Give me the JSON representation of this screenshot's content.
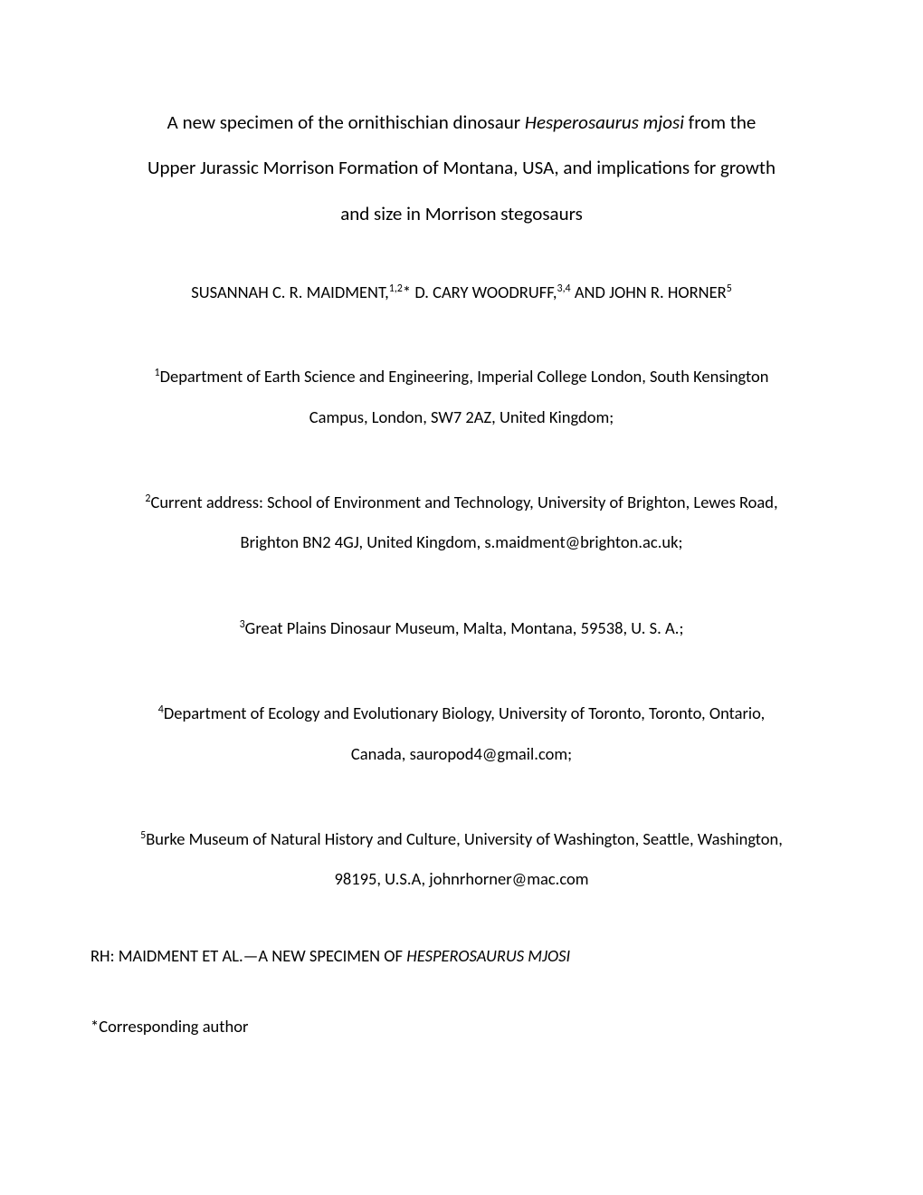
{
  "title": {
    "line1_prefix": "A new specimen of the ornithischian dinosaur ",
    "line1_italic": "Hesperosaurus mjosi",
    "line1_suffix": " from the",
    "line2": "Upper Jurassic Morrison Formation of Montana, USA, and implications for growth",
    "line3": "and size in Morrison stegosaurs"
  },
  "authors": {
    "author1_name": "SUSANNAH C. R. MAIDMENT,",
    "author1_sup": "1,2",
    "author1_suffix": "* ",
    "author2_name": "D. CARY WOODRUFF,",
    "author2_sup": "3,4",
    "author2_suffix": " AND ",
    "author3_name": "JOHN R. HORNER",
    "author3_sup": "5"
  },
  "affiliations": {
    "aff1_sup": "1",
    "aff1_line1": "Department of Earth Science and Engineering, Imperial College London, South Kensington",
    "aff1_line2": "Campus, London, SW7 2AZ, United Kingdom;",
    "aff2_sup": "2",
    "aff2_line1": "Current address: School of Environment and Technology, University of Brighton, Lewes Road,",
    "aff2_line2": "Brighton BN2 4GJ, United Kingdom, s.maidment@brighton.ac.uk;",
    "aff3_sup": "3",
    "aff3_text": "Great Plains Dinosaur Museum, Malta, Montana, 59538, U. S. A.;",
    "aff4_sup": "4",
    "aff4_line1": "Department of Ecology and Evolutionary Biology, University of Toronto, Toronto, Ontario,",
    "aff4_line2": "Canada, sauropod4@gmail.com;",
    "aff5_sup": "5",
    "aff5_line1": "Burke Museum of Natural History and Culture, University of Washington, Seattle, Washington,",
    "aff5_line2": "98195, U.S.A, johnrhorner@mac.com"
  },
  "running_head": {
    "prefix": "RH: MAIDMENT ET AL.—A NEW SPECIMEN OF ",
    "italic": "HESPEROSAURUS MJOSI"
  },
  "corresponding": "*Corresponding author"
}
